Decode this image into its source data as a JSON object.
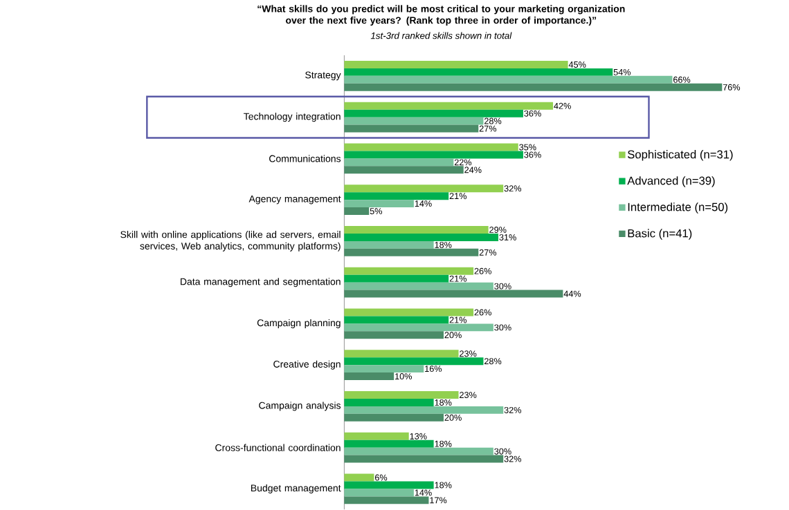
{
  "chart_data": {
    "type": "bar",
    "orientation": "horizontal",
    "title": "“What skills do you predict will be most critical to your marketing organization over the next five years? (Rank top three in order of importance.)”",
    "subtitle": "1st-3rd ranked skills shown in total",
    "categories": [
      "Strategy",
      "Technology integration",
      "Communications",
      "Agency management",
      "Skill with online applications (like ad servers, email services, Web analytics, community platforms)",
      "Data management and segmentation",
      "Campaign planning",
      "Creative design",
      "Campaign analysis",
      "Cross-functional coordination",
      "Budget management"
    ],
    "series": [
      {
        "name": "Sophisticated (n=31)",
        "color": "#92d050",
        "values": [
          45,
          42,
          35,
          32,
          29,
          26,
          26,
          23,
          23,
          13,
          6
        ],
        "value_labels": [
          "45%",
          "42%",
          "35%",
          "32%",
          "29%",
          "26%",
          "26%",
          "23%",
          "23%",
          "13%",
          "6%"
        ]
      },
      {
        "name": "Advanced (n=39)",
        "color": "#00b050",
        "values": [
          54,
          36,
          36,
          21,
          31,
          21,
          21,
          28,
          18,
          18,
          18
        ],
        "value_labels": [
          "54%",
          "36%",
          "36%",
          "21%",
          "31%",
          "21%",
          "21%",
          "28%",
          "18%",
          "18%",
          "18%"
        ]
      },
      {
        "name": "Intermediate (n=50)",
        "color": "#77c29c",
        "values": [
          66,
          28,
          22,
          14,
          18,
          30,
          30,
          16,
          32,
          30,
          14
        ],
        "value_labels": [
          "66%",
          "28%",
          "22%",
          "14%",
          "18%",
          "30%",
          "30%",
          "16%",
          "32%",
          "30%",
          "14%"
        ]
      },
      {
        "name": "Basic (n=41)",
        "color": "#4a8c68",
        "values": [
          76,
          27,
          24,
          5,
          27,
          44,
          20,
          10,
          20,
          32,
          17
        ],
        "value_labels": [
          "76%",
          "27%",
          "24%",
          "5%",
          "27%",
          "44%",
          "20%",
          "10%",
          "20%",
          "32%",
          "17%"
        ]
      }
    ],
    "legend": "right"
  }
}
